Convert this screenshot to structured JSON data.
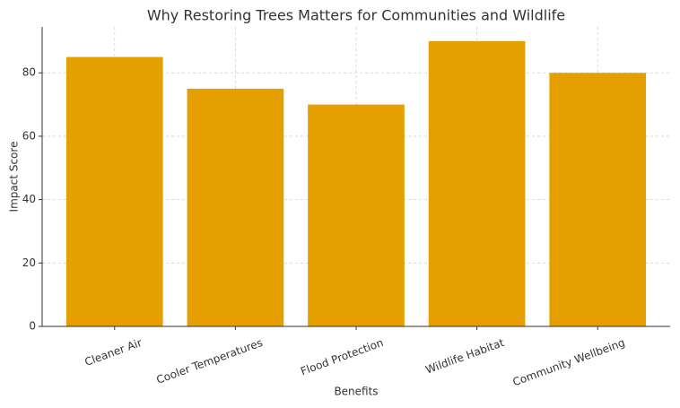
{
  "chart_data": {
    "type": "bar",
    "title": "Why Restoring Trees Matters for Communities and Wildlife",
    "x_label": "Benefits",
    "y_label": "Impact Score",
    "categories": [
      "Cleaner Air",
      "Cooler Temperatures",
      "Flood Protection",
      "Wildlife Habitat",
      "Community Wellbeing"
    ],
    "values": [
      85,
      75,
      70,
      90,
      80
    ],
    "color": "#e69f00",
    "ylim": [
      0,
      94.5
    ],
    "yticks": [
      0,
      20,
      40,
      60,
      80
    ],
    "grid": true
  }
}
